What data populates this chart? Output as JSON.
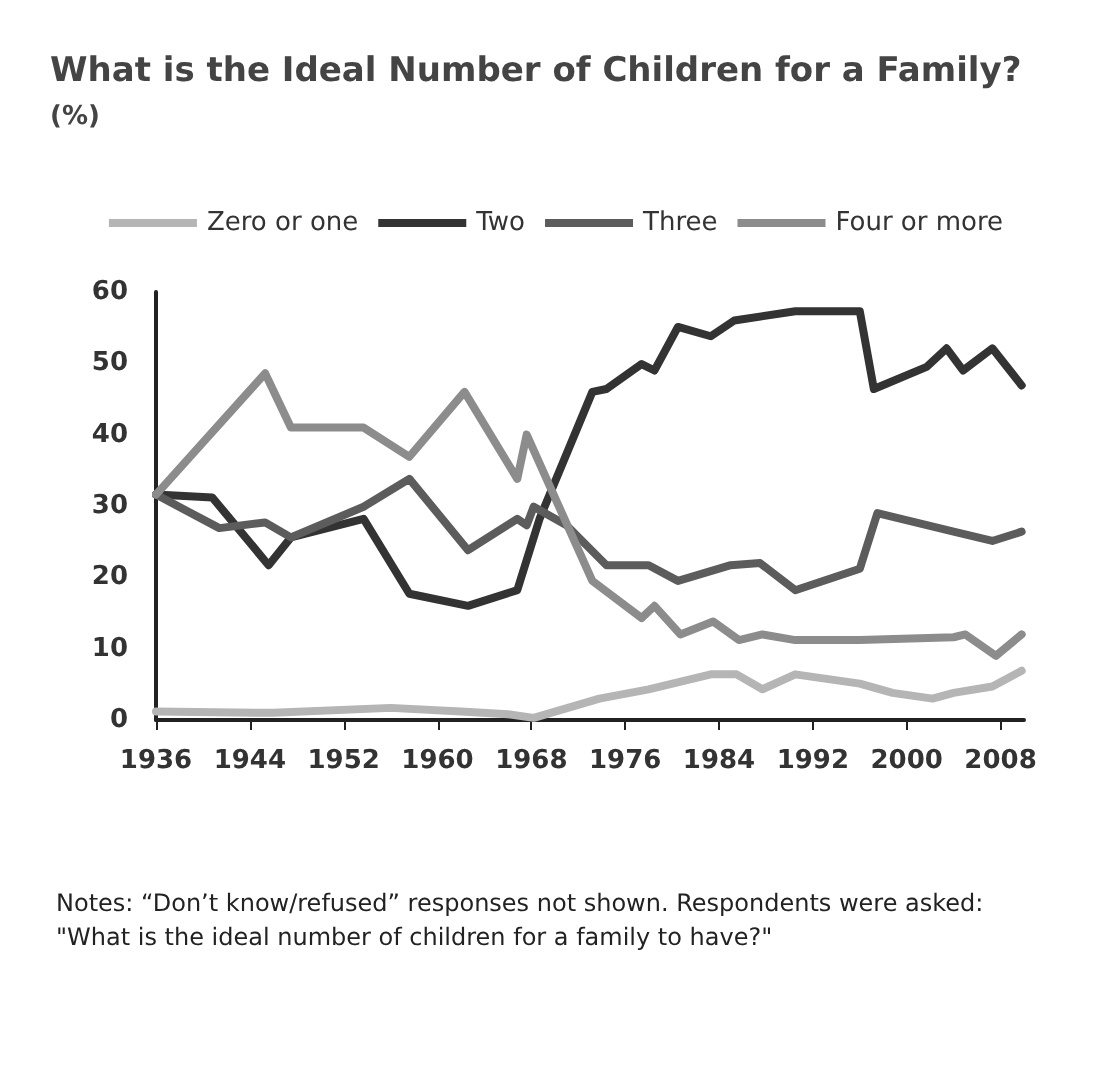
{
  "chart_data": {
    "type": "line",
    "title": "What is the Ideal Number of Children for a Family?",
    "subtitle": "(%)",
    "legend": "top",
    "grid": false,
    "marker": "none",
    "line_style": "solid",
    "xlim": [
      1936,
      2010
    ],
    "xticks": [
      1936,
      1944,
      1952,
      1960,
      1968,
      1976,
      1984,
      1992,
      2000,
      2008
    ],
    "ylim": [
      0,
      60
    ],
    "yticks": [
      0,
      10,
      20,
      30,
      40,
      50,
      60
    ],
    "annotations": [
      "Notes: “Don’t know/refused” responses not shown. Respondents were asked: \"What is the ideal number of children for a family to have?\""
    ],
    "series": [
      {
        "name": "Zero or one",
        "color": "#b5b5b5",
        "x": [
          1936,
          1946,
          1956,
          1962,
          1966,
          1968.2,
          1973.8,
          1978,
          1983.3,
          1985.5,
          1987.7,
          1990.5,
          1996,
          1998.8,
          2002.2,
          2004,
          2007.3,
          2009.8
        ],
        "values": [
          1.2,
          1,
          1.7,
          1.2,
          0.8,
          0.3,
          3,
          4.3,
          6.4,
          6.4,
          4.3,
          6.4,
          5.1,
          3.8,
          3,
          3.8,
          4.7,
          6.9
        ]
      },
      {
        "name": "Two",
        "color": "#333333",
        "x": [
          1936,
          1940.8,
          1945.6,
          1947.5,
          1953.7,
          1957.6,
          1962.6,
          1966.8,
          1968.7,
          1973.2,
          1974.4,
          1977.4,
          1978.5,
          1980.5,
          1983.3,
          1985.3,
          1990.5,
          1996,
          1997.2,
          2001.7,
          2003.4,
          2004.8,
          2007.3,
          2009.8
        ],
        "values": [
          31.6,
          31.2,
          21.7,
          25.6,
          28.2,
          17.7,
          16,
          18.2,
          28.2,
          46,
          46.4,
          49.9,
          49,
          55.1,
          53.8,
          56,
          57.3,
          57.3,
          46.4,
          49.5,
          52.1,
          49,
          52.1,
          46.9
        ]
      },
      {
        "name": "Three",
        "color": "#5c5c5c",
        "x": [
          1936,
          1941.4,
          1945.3,
          1947.5,
          1953.7,
          1957.6,
          1962.6,
          1966.8,
          1967.6,
          1968.2,
          1971,
          1974.4,
          1978,
          1980.5,
          1985,
          1987.5,
          1990.5,
          1996,
          1997.5,
          2004,
          2007.3,
          2009.8
        ],
        "values": [
          31.6,
          26.9,
          27.7,
          25.6,
          29.9,
          33.8,
          23.8,
          28.2,
          27.3,
          29.9,
          27.3,
          21.7,
          21.7,
          19.5,
          21.7,
          22,
          18.2,
          21.2,
          29,
          26.4,
          25.1,
          26.4
        ]
      },
      {
        "name": "Four or more",
        "color": "#8c8c8c",
        "x": [
          1936,
          1945.3,
          1947.5,
          1953.7,
          1957.6,
          1962.3,
          1966.8,
          1967.6,
          1973.2,
          1977.4,
          1978.5,
          1980.7,
          1983.5,
          1985.7,
          1987.7,
          1990.5,
          1996,
          2004,
          2005,
          2007.6,
          2009.8
        ],
        "values": [
          31.6,
          48.6,
          41,
          41,
          36.9,
          46,
          33.8,
          40,
          19.5,
          14.3,
          16,
          12,
          13.8,
          11.2,
          12,
          11.2,
          11.2,
          11.6,
          12,
          9,
          12
        ]
      }
    ]
  }
}
